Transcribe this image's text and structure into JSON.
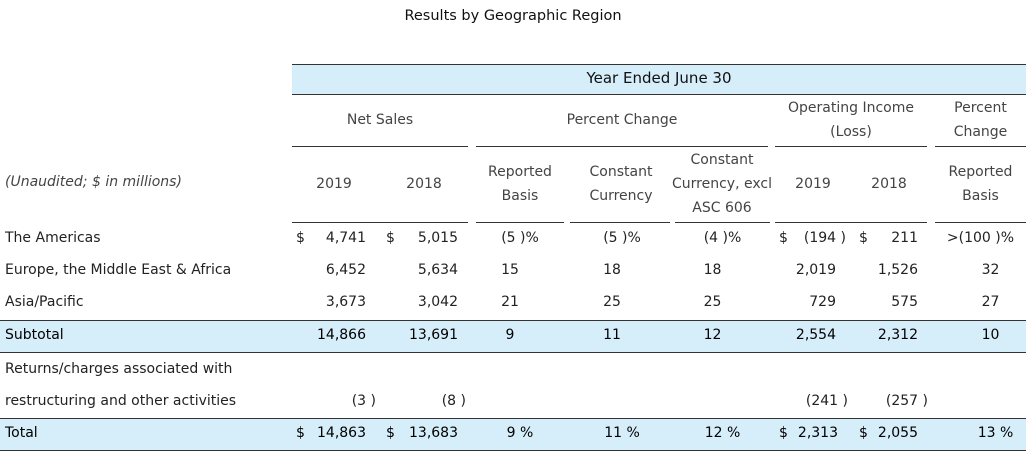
{
  "title": "Results by Geographic Region",
  "header": {
    "year_ended": "Year Ended June 30",
    "net_sales": "Net Sales",
    "percent_change": "Percent Change",
    "operating_income_1": "Operating Income",
    "operating_income_2": "(Loss)",
    "percent_change_1": "Percent",
    "percent_change_2": "Change",
    "unaudited": "(Unaudited; $ in millions)",
    "col_2019": "2019",
    "col_2018": "2018",
    "reported_1": "Reported",
    "reported_2": "Basis",
    "constant_1": "Constant",
    "constant_2": "Currency",
    "constant_excl_1": "Constant",
    "constant_excl_2": "Currency, excl",
    "constant_excl_3": "ASC 606",
    "oi_2019": "2019",
    "oi_2018": "2018",
    "rep2_1": "Reported",
    "rep2_2": "Basis"
  },
  "rows": {
    "americas": {
      "label": "The Americas",
      "ns_cur1": "$",
      "ns2019": "4,741",
      "ns_cur2": "$",
      "ns2018": "5,015",
      "rep": "(5 )%",
      "cc": "(5 )%",
      "ccx": "(4 )%",
      "oi_cur1": "$",
      "oi2019": "(194 )",
      "oi_cur2": "$",
      "oi2018": "211",
      "pct": ">(100 )%"
    },
    "emea": {
      "label": "Europe, the Middle East & Africa",
      "ns2019": "6,452",
      "ns2018": "5,634",
      "rep": "15",
      "cc": "18",
      "ccx": "18",
      "oi2019": "2,019",
      "oi2018": "1,526",
      "pct": "32"
    },
    "apac": {
      "label": "Asia/Pacific",
      "ns2019": "3,673",
      "ns2018": "3,042",
      "rep": "21",
      "cc": "25",
      "ccx": "25",
      "oi2019": "729",
      "oi2018": "575",
      "pct": "27"
    },
    "subtotal": {
      "label": "Subtotal",
      "ns2019": "14,866",
      "ns2018": "13,691",
      "rep": "9",
      "cc": "11",
      "ccx": "12",
      "oi2019": "2,554",
      "oi2018": "2,312",
      "pct": "10"
    },
    "returns": {
      "label1": "Returns/charges associated with",
      "label2": "restructuring and other activities",
      "ns2019": "(3 )",
      "ns2018": "(8 )",
      "oi2019": "(241 )",
      "oi2018": "(257 )"
    },
    "total": {
      "label": "Total",
      "ns_cur1": "$",
      "ns2019": "14,863",
      "ns_cur2": "$",
      "ns2018": "13,683",
      "rep": "9 %",
      "cc": "11 %",
      "ccx": "12 %",
      "oi_cur1": "$",
      "oi2019": "2,313",
      "oi_cur2": "$",
      "oi2018": "2,055",
      "pct": "13 %"
    }
  },
  "colors": {
    "band": "#d6eefa",
    "rule": "#333333"
  }
}
